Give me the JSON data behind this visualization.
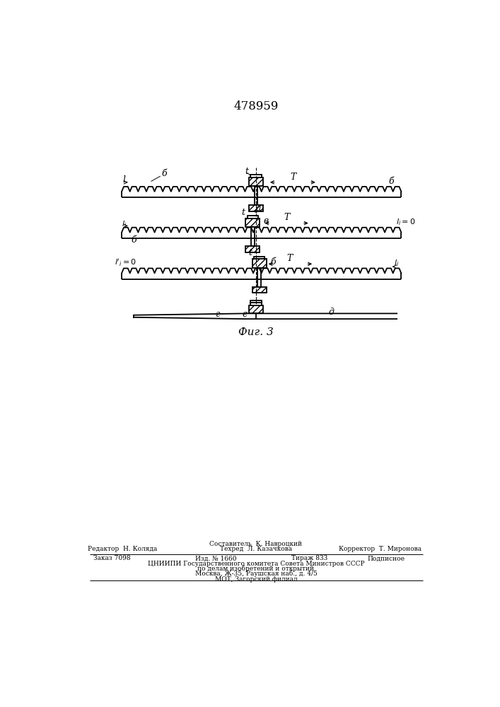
{
  "title": "478959",
  "fig_label": "Фиг. 3",
  "background_color": "#ffffff",
  "line_color": "#000000",
  "fig_width": 7.07,
  "fig_height": 10.0,
  "footer_editor": "Редактор  Н. Коляда",
  "footer_composer": "Составитель  К. Навроцкий",
  "footer_corrector": "Корректор  Т. Миронова",
  "footer_techred": "Техред  Л. Казачкова",
  "footer_order": "Заказ 7098",
  "footer_izd": "Изд. № 1660",
  "footer_tirazh": "Тираж 833",
  "footer_podp": "Подписное",
  "footer_org": "ЦНИИПИ Государственного комитета Совета Министров СССР",
  "footer_dept": "по делам изобретений и открытий",
  "footer_addr": "Москва, Ж-35, Раушская наб., д. 4/5",
  "footer_mot": "МОТ, Загорский филиал"
}
